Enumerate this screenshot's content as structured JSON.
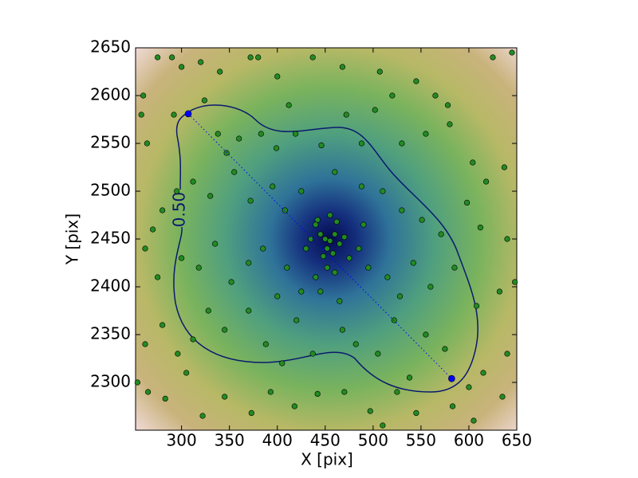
{
  "chart_data": {
    "type": "scatter",
    "xlabel": "X [pix]",
    "ylabel": "Y [pix]",
    "xlim": [
      252,
      650
    ],
    "ylim": [
      2250,
      2650
    ],
    "xticks": [
      300,
      350,
      400,
      450,
      500,
      550,
      600,
      650
    ],
    "yticks": [
      2300,
      2350,
      2400,
      2450,
      2500,
      2550,
      2600,
      2650
    ],
    "contour_label": "0.50",
    "series": [
      {
        "color": "#228b22",
        "x": [
          440,
          445,
          450,
          455,
          460,
          452,
          458,
          465,
          448,
          435,
          470,
          442,
          462,
          455,
          430,
          475,
          452,
          440,
          460,
          445,
          465,
          425,
          485,
          490,
          260,
          258,
          275,
          290,
          300,
          320,
          340,
          372,
          380,
          400,
          412,
          437,
          468,
          520,
          507,
          545,
          565,
          578,
          625,
          645,
          264,
          292,
          324,
          338,
          347,
          360,
          383,
          399,
          419,
          446,
          472,
          488,
          502,
          530,
          555,
          580,
          604,
          618,
          637,
          280,
          295,
          312,
          330,
          355,
          372,
          395,
          408,
          425,
          460,
          488,
          510,
          530,
          551,
          571,
          598,
          612,
          640,
          262,
          275,
          300,
          318,
          335,
          352,
          370,
          385,
          400,
          410,
          495,
          515,
          528,
          542,
          560,
          585,
          608,
          632,
          648,
          262,
          280,
          296,
          312,
          328,
          345,
          370,
          388,
          405,
          420,
          437,
          468,
          482,
          505,
          522,
          538,
          555,
          575,
          600,
          615,
          640,
          265,
          283,
          305,
          322,
          345,
          373,
          393,
          418,
          442,
          470,
          497,
          510,
          525,
          545,
          583,
          605,
          635,
          270,
          254
        ],
        "y": [
          2465,
          2455,
          2450,
          2448,
          2455,
          2440,
          2435,
          2445,
          2432,
          2450,
          2452,
          2470,
          2468,
          2475,
          2440,
          2430,
          2420,
          2410,
          2415,
          2395,
          2385,
          2395,
          2440,
          2465,
          2600,
          2580,
          2640,
          2640,
          2630,
          2635,
          2625,
          2640,
          2640,
          2620,
          2590,
          2640,
          2630,
          2600,
          2625,
          2615,
          2600,
          2590,
          2640,
          2645,
          2550,
          2580,
          2595,
          2560,
          2540,
          2555,
          2560,
          2545,
          2560,
          2548,
          2580,
          2550,
          2585,
          2550,
          2560,
          2570,
          2530,
          2510,
          2525,
          2480,
          2500,
          2510,
          2495,
          2520,
          2490,
          2505,
          2480,
          2500,
          2520,
          2505,
          2500,
          2480,
          2470,
          2455,
          2488,
          2462,
          2450,
          2440,
          2410,
          2430,
          2420,
          2445,
          2405,
          2425,
          2440,
          2390,
          2420,
          2420,
          2410,
          2390,
          2425,
          2400,
          2420,
          2380,
          2395,
          2405,
          2340,
          2360,
          2330,
          2345,
          2375,
          2355,
          2375,
          2340,
          2320,
          2365,
          2330,
          2355,
          2340,
          2330,
          2365,
          2305,
          2350,
          2335,
          2295,
          2310,
          2330,
          2290,
          2283,
          2310,
          2265,
          2285,
          2268,
          2290,
          2275,
          2288,
          2290,
          2270,
          2255,
          2290,
          2268,
          2275,
          2260,
          2285,
          2460,
          2300
        ]
      }
    ],
    "endpoints": {
      "color": "#0000ff",
      "x": [
        307,
        582
      ],
      "y": [
        2581,
        2304
      ]
    }
  }
}
